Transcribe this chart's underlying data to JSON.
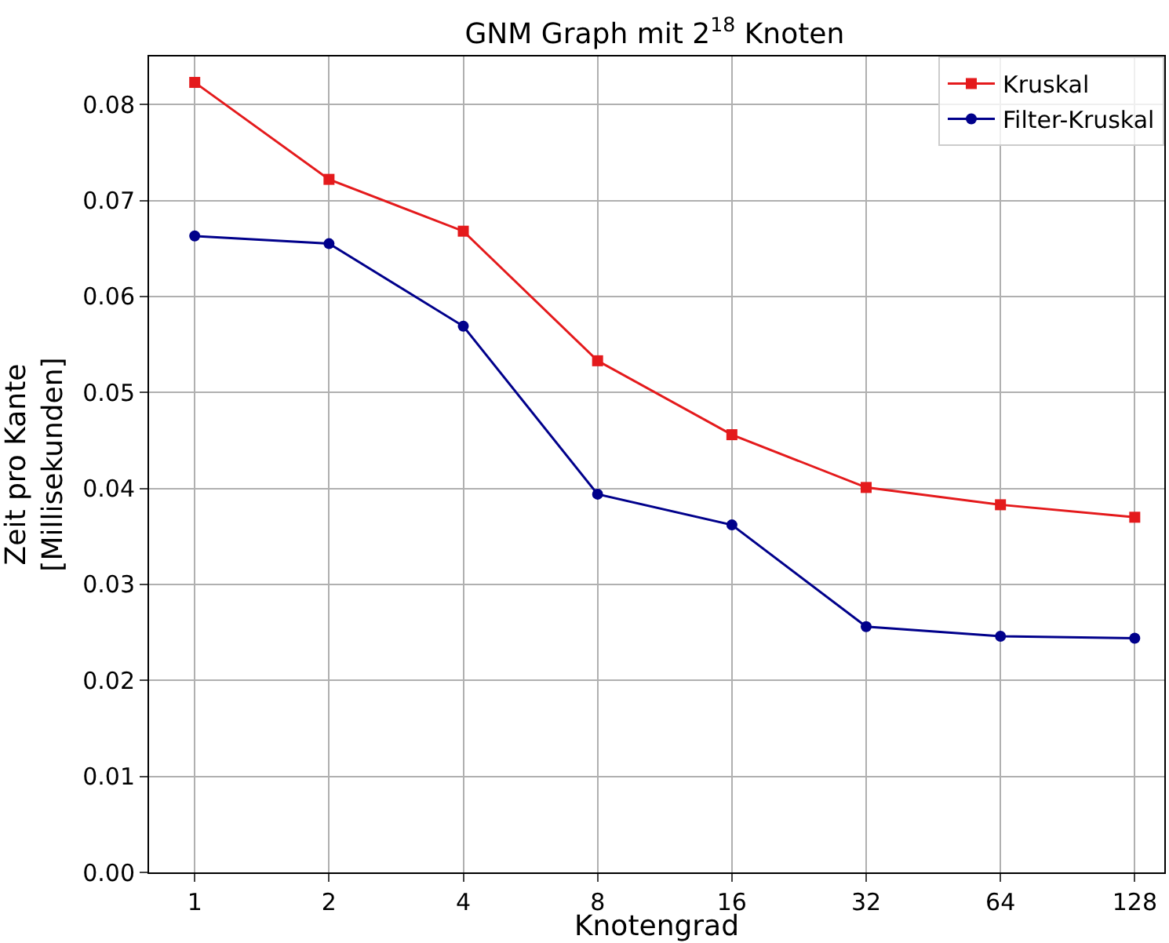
{
  "chart_data": {
    "type": "line",
    "title": "GNM Graph mit 2$^{18}$ Knoten",
    "xlabel": "Knotengrad",
    "ylabel": "Zeit pro Kante\n[Millisekunden]",
    "categories": [
      "1",
      "2",
      "4",
      "8",
      "16",
      "32",
      "64",
      "128"
    ],
    "series": [
      {
        "name": "Kruskal",
        "color": "#e41a1c",
        "marker": "square",
        "values": [
          0.0823,
          0.0722,
          0.0668,
          0.0533,
          0.0456,
          0.0401,
          0.0383,
          0.037
        ]
      },
      {
        "name": "Filter-Kruskal",
        "color": "#00008b",
        "marker": "circle",
        "values": [
          0.0663,
          0.0655,
          0.0569,
          0.0394,
          0.0362,
          0.0256,
          0.0246,
          0.0244
        ]
      }
    ],
    "ylim": [
      0,
      0.085
    ],
    "yticks": [
      {
        "value": 0,
        "label": "0.00"
      },
      0.01,
      0.02,
      0.03,
      0.04,
      0.05,
      0.06,
      0.07,
      0.08
    ],
    "grid": true,
    "legend": "top right",
    "line_style": "solid"
  }
}
